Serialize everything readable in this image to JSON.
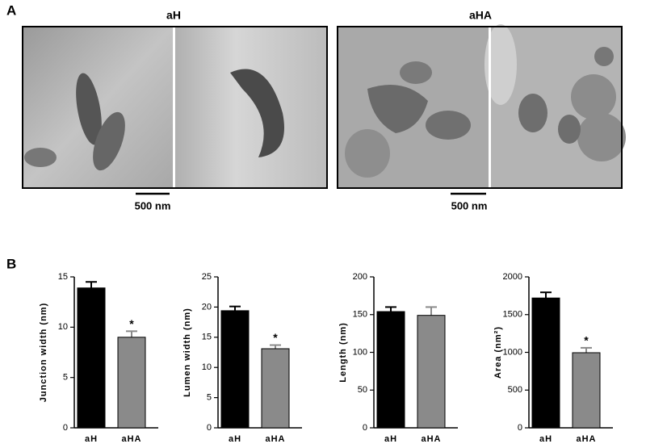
{
  "panel_a": {
    "label": "A",
    "groups": [
      "aH",
      "aHA"
    ],
    "scale_bars": [
      "500 nm",
      "500 nm"
    ]
  },
  "panel_b": {
    "label": "B"
  },
  "chart_data": [
    {
      "type": "bar",
      "y_label": "Junction width (nm)",
      "categories": [
        "aH",
        "aHA"
      ],
      "values": [
        13.9,
        9.0
      ],
      "errors": [
        0.6,
        0.6
      ],
      "colors": [
        "#000000",
        "#8a8a8a"
      ],
      "ylim": [
        0,
        15
      ],
      "yticks": [
        0,
        5,
        10,
        15
      ],
      "annotations": [
        {
          "text": "*",
          "x": "aHA"
        }
      ]
    },
    {
      "type": "bar",
      "y_label": "Lumen width (nm)",
      "categories": [
        "aH",
        "aHA"
      ],
      "values": [
        19.4,
        13.1
      ],
      "errors": [
        0.7,
        0.6
      ],
      "colors": [
        "#000000",
        "#8a8a8a"
      ],
      "ylim": [
        0,
        25
      ],
      "yticks": [
        0,
        5,
        10,
        15,
        20,
        25
      ],
      "annotations": [
        {
          "text": "*",
          "x": "aHA"
        }
      ]
    },
    {
      "type": "bar",
      "y_label": "Length (nm)",
      "categories": [
        "aH",
        "aHA"
      ],
      "values": [
        154,
        149
      ],
      "errors": [
        6,
        11
      ],
      "colors": [
        "#000000",
        "#8a8a8a"
      ],
      "ylim": [
        0,
        200
      ],
      "yticks": [
        0,
        50,
        100,
        150,
        200
      ]
    },
    {
      "type": "bar",
      "y_label": "Area (nm²)",
      "categories": [
        "aH",
        "aHA"
      ],
      "values": [
        1720,
        995
      ],
      "errors": [
        75,
        65
      ],
      "colors": [
        "#000000",
        "#8a8a8a"
      ],
      "ylim": [
        0,
        2000
      ],
      "yticks": [
        0,
        500,
        1000,
        1500,
        2000
      ],
      "annotations": [
        {
          "text": "*",
          "x": "aHA"
        }
      ]
    }
  ]
}
